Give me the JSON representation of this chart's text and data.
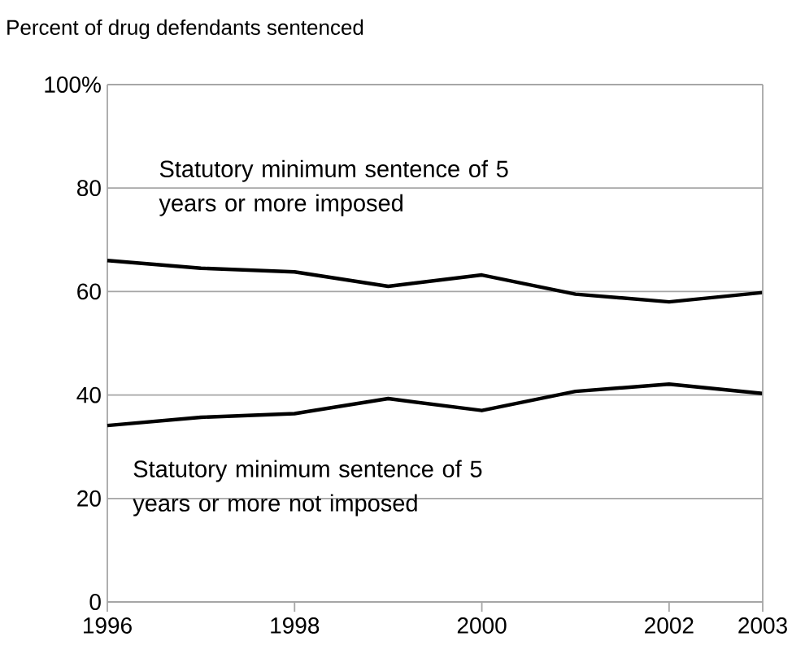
{
  "chart_data": {
    "type": "line",
    "ylabel": "Percent of drug defendants sentenced",
    "x": [
      1996,
      1997,
      1998,
      1999,
      2000,
      2001,
      2002,
      2003
    ],
    "series": [
      {
        "name": "Statutory minimum sentence of 5 years or more imposed",
        "color": "#000000",
        "values": [
          66,
          64.5,
          63.8,
          61,
          63.2,
          59.5,
          58,
          59.8
        ]
      },
      {
        "name": "Statutory minimum sentence of 5 years or more not imposed",
        "color": "#000000",
        "values": [
          34.1,
          35.7,
          36.4,
          39.3,
          37,
          40.7,
          42.1,
          40.3
        ]
      }
    ],
    "xlim": [
      1996,
      2003
    ],
    "ylim": [
      0,
      100
    ],
    "xticks": [
      1996,
      1998,
      2000,
      2002,
      2003
    ],
    "yticks": [
      0,
      20,
      40,
      60,
      80,
      {
        "value": 100,
        "label": "100%"
      }
    ],
    "grid": "y",
    "marker": "none",
    "line_style": "solid"
  }
}
